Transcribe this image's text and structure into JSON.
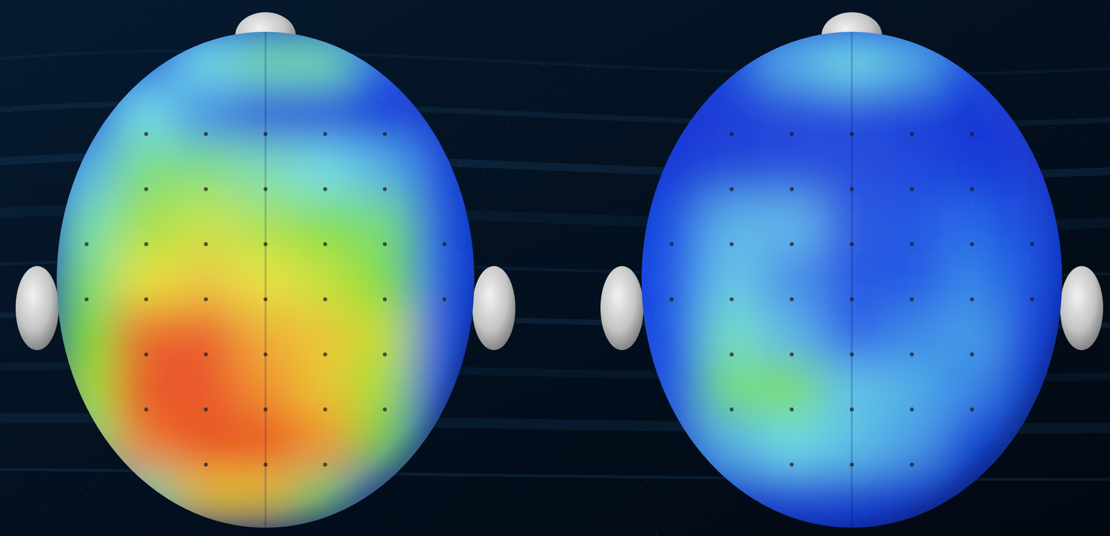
{
  "chart_data": [
    {
      "type": "heatmap",
      "zlim": [
        0,
        1
      ],
      "cells": [
        [
          0,
          0.15,
          0.35,
          0.4,
          0.4,
          0.2,
          0
        ],
        [
          0.1,
          0.35,
          0.25,
          0.05,
          0.02,
          0.02,
          0
        ],
        [
          0.3,
          0.45,
          0.45,
          0.4,
          0.35,
          0.3,
          0.1
        ],
        [
          0.4,
          0.55,
          0.6,
          0.55,
          0.5,
          0.45,
          0.15
        ],
        [
          0.45,
          0.65,
          0.7,
          0.65,
          0.6,
          0.5,
          0.2
        ],
        [
          0.5,
          0.92,
          0.95,
          0.75,
          0.7,
          0.6,
          0.2
        ],
        [
          0.55,
          0.95,
          0.95,
          0.8,
          0.7,
          0.55,
          0.2
        ],
        [
          0.45,
          0.85,
          0.95,
          0.95,
          0.8,
          0.5,
          0.15
        ],
        [
          0.1,
          0.4,
          0.7,
          0.7,
          0.45,
          0.2,
          0.05
        ]
      ]
    },
    {
      "type": "heatmap",
      "zlim": [
        0,
        1
      ],
      "cells": [
        [
          0,
          0.1,
          0.3,
          0.35,
          0.3,
          0.1,
          0
        ],
        [
          0,
          0,
          0.02,
          0.05,
          0.02,
          0,
          0
        ],
        [
          0,
          0.03,
          0.05,
          0.05,
          0.05,
          0.02,
          0
        ],
        [
          0.15,
          0.3,
          0.3,
          0.1,
          0.15,
          0.22,
          0.1
        ],
        [
          0.2,
          0.32,
          0.25,
          0.12,
          0.15,
          0.25,
          0.15
        ],
        [
          0.2,
          0.38,
          0.3,
          0.2,
          0.25,
          0.28,
          0.12
        ],
        [
          0.15,
          0.45,
          0.48,
          0.32,
          0.3,
          0.25,
          0.1
        ],
        [
          0.1,
          0.3,
          0.35,
          0.32,
          0.28,
          0.15,
          0.05
        ],
        [
          0,
          0.05,
          0.08,
          0.08,
          0.05,
          0,
          0
        ]
      ]
    }
  ]
}
